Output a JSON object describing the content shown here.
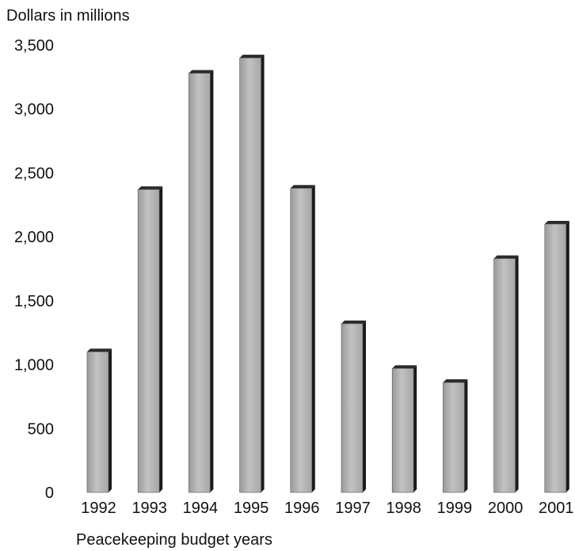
{
  "chart_data": {
    "type": "bar",
    "ylabel": "Dollars in millions",
    "xlabel": "Peacekeeping budget years",
    "title": "",
    "categories": [
      "1992",
      "1993",
      "1994",
      "1995",
      "1996",
      "1997",
      "1998",
      "1999",
      "2000",
      "2001"
    ],
    "values": [
      1100,
      2370,
      3280,
      3400,
      2380,
      1320,
      970,
      860,
      1830,
      2100
    ],
    "ylim": [
      0,
      3500
    ],
    "yticks": [
      0,
      500,
      1000,
      1500,
      2000,
      2500,
      3000,
      3500
    ],
    "ytick_labels": [
      "0",
      "500",
      "1,000",
      "1,500",
      "2,000",
      "2,500",
      "3,000",
      "3,500"
    ],
    "grid": false,
    "colors": {
      "bar_face": "#b4b4b4",
      "bar_side": "#1a1a1a"
    }
  }
}
